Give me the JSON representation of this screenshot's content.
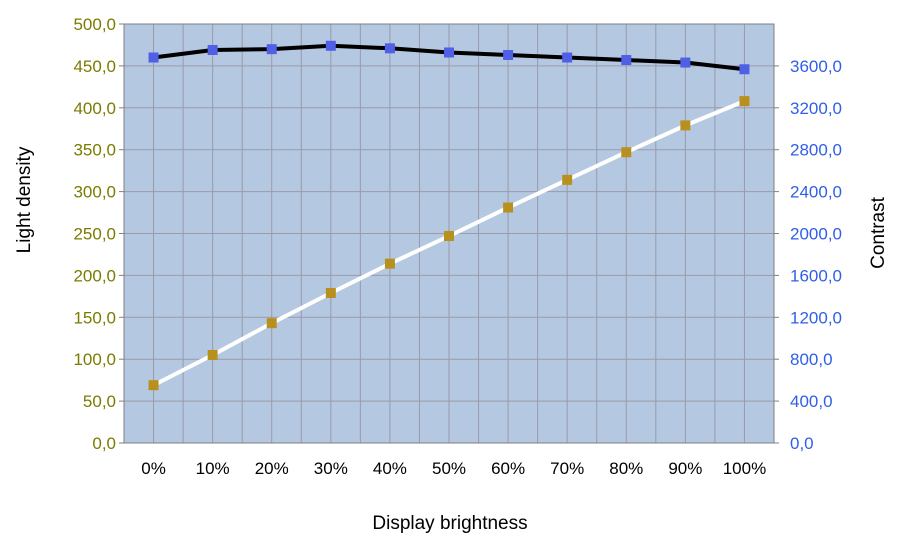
{
  "chart_data": {
    "type": "line",
    "xlabel": "Display brightness",
    "ylabel_left": "Light density",
    "ylabel_right": "Contrast",
    "categories": [
      "0%",
      "10%",
      "20%",
      "30%",
      "40%",
      "50%",
      "60%",
      "70%",
      "80%",
      "90%",
      "100%"
    ],
    "ylim_left": [
      0,
      500
    ],
    "yticks_left": [
      "0,0",
      "50,0",
      "100,0",
      "150,0",
      "200,0",
      "250,0",
      "300,0",
      "350,0",
      "400,0",
      "450,0",
      "500,0"
    ],
    "ylim_right": [
      0,
      4000
    ],
    "yticks_right": [
      "0,0",
      "400,0",
      "800,0",
      "1200,0",
      "1600,0",
      "2000,0",
      "2400,0",
      "2800,0",
      "3200,0",
      "3600,0"
    ],
    "grid": true,
    "legend": "none",
    "series": [
      {
        "axis": "left",
        "values": [
          460,
          469,
          470,
          474,
          471,
          466,
          463,
          460,
          457,
          454,
          446
        ],
        "line_color": "#000000",
        "marker_color": "#4f5fe6"
      },
      {
        "axis": "left",
        "values": [
          69,
          105,
          143,
          179,
          214,
          247,
          281,
          314,
          347,
          379,
          408
        ],
        "line_color": "#ffffff",
        "marker_color": "#b8901e"
      }
    ],
    "colors": {
      "plot_background": "#b4c8e2",
      "grid": "#9a9aa8",
      "left_tick_text": "#7b7b00",
      "right_tick_text": "#2f5fe8"
    }
  }
}
